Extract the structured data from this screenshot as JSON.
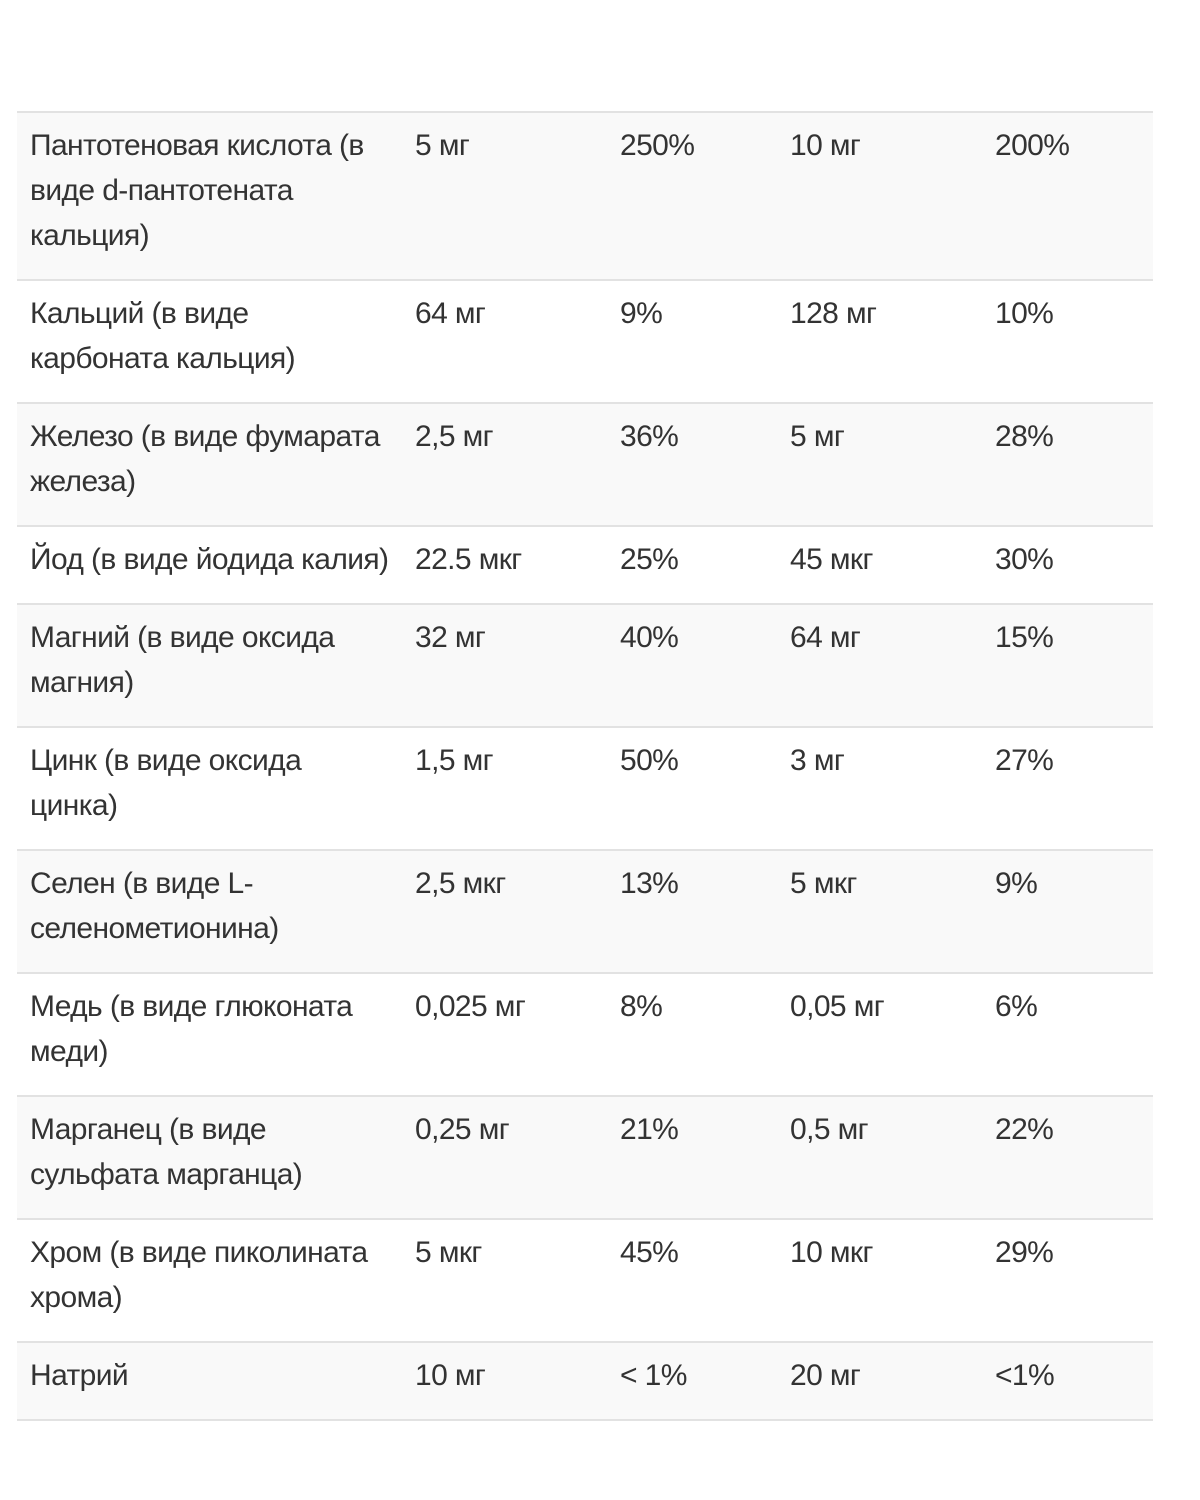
{
  "rows": [
    {
      "name": "Пантотеновая кислота (в виде d-пантотената кальция)",
      "v1": "5 мг",
      "p1": "250%",
      "v2": "10 мг",
      "p2": "200%"
    },
    {
      "name": "Кальций (в виде карбоната кальция)",
      "v1": "64 мг",
      "p1": "9%",
      "v2": "128 мг",
      "p2": "10%"
    },
    {
      "name": "Железо (в виде фумарата железа)",
      "v1": "2,5 мг",
      "p1": "36%",
      "v2": "5 мг",
      "p2": "28%"
    },
    {
      "name": "Йод (в виде йодида калия)",
      "v1": "22.5 мкг",
      "p1": "25%",
      "v2": "45 мкг",
      "p2": "30%"
    },
    {
      "name": "Магний (в виде оксида магния)",
      "v1": "32 мг",
      "p1": "40%",
      "v2": "64 мг",
      "p2": "15%"
    },
    {
      "name": "Цинк (в виде оксида цинка)",
      "v1": "1,5 мг",
      "p1": "50%",
      "v2": "3 мг",
      "p2": "27%"
    },
    {
      "name": "Селен (в виде L-селенометионина)",
      "v1": "2,5 мкг",
      "p1": "13%",
      "v2": "5 мкг",
      "p2": "9%"
    },
    {
      "name": "Медь (в виде глюконата меди)",
      "v1": "0,025 мг",
      "p1": "8%",
      "v2": "0,05 мг",
      "p2": "6%"
    },
    {
      "name": "Марганец (в виде сульфата марганца)",
      "v1": "0,25 мг",
      "p1": "21%",
      "v2": "0,5 мг",
      "p2": "22%"
    },
    {
      "name": "Хром (в виде пиколината хрома)",
      "v1": "5 мкг",
      "p1": "45%",
      "v2": "10 мкг",
      "p2": "29%"
    },
    {
      "name": "Натрий",
      "v1": "10 мг",
      "p1": "< 1%",
      "v2": "20 мг",
      "p2": "<1%"
    }
  ]
}
